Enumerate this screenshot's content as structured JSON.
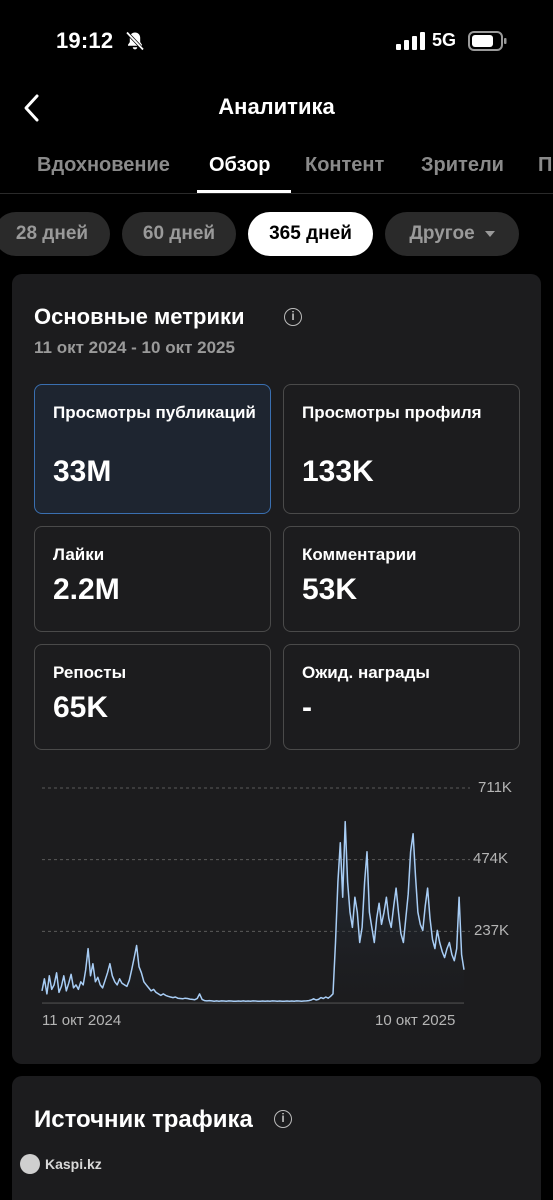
{
  "status": {
    "time": "19:12",
    "network": "5G",
    "icons": [
      "bell-slash-icon",
      "signal-icon",
      "battery-icon"
    ]
  },
  "header": {
    "title": "Аналитика",
    "back_icon": "chevron-left-icon"
  },
  "tabs": [
    {
      "label": "Вдохновение",
      "active": false
    },
    {
      "label": "Обзор",
      "active": true
    },
    {
      "label": "Контент",
      "active": false
    },
    {
      "label": "Зрители",
      "active": false
    },
    {
      "label": "П",
      "active": false
    }
  ],
  "periods": [
    {
      "label": "28 дней",
      "active": false
    },
    {
      "label": "60 дней",
      "active": false
    },
    {
      "label": "365 дней",
      "active": true
    },
    {
      "label": "Другое",
      "active": false,
      "dropdown": true
    }
  ],
  "metrics": {
    "title": "Основные метрики",
    "info_icon": "i",
    "date_range": "11 окт 2024 - 10 окт 2025",
    "tiles": [
      {
        "label": "Просмотры публикаций",
        "value": "33M",
        "selected": true
      },
      {
        "label": "Просмотры профиля",
        "value": "133K",
        "selected": false
      },
      {
        "label": "Лайки",
        "value": "2.2M",
        "selected": false
      },
      {
        "label": "Комментарии",
        "value": "53K",
        "selected": false
      },
      {
        "label": "Репосты",
        "value": "65K",
        "selected": false
      },
      {
        "label": "Ожид. награды",
        "value": "-",
        "selected": false
      }
    ]
  },
  "chart_data": {
    "type": "area",
    "title": "",
    "xlabel": "",
    "ylabel": "",
    "x_tick_labels": [
      "11 окт 2024",
      "10 окт 2025"
    ],
    "y_tick_labels": [
      "711K",
      "474K",
      "237K"
    ],
    "y_ticks": [
      711000,
      474000,
      237000
    ],
    "ylim": [
      0,
      711000
    ],
    "grid": "dashed-horizontal",
    "color": "#a8cdf5",
    "series": [
      {
        "values": [
          40000,
          80000,
          30000,
          90000,
          45000,
          60000,
          100000,
          35000,
          55000,
          90000,
          40000,
          65000,
          95000,
          50000,
          60000,
          45000,
          70000,
          60000,
          110000,
          180000,
          90000,
          130000,
          70000,
          85000,
          60000,
          50000,
          75000,
          100000,
          130000,
          90000,
          70000,
          60000,
          80000,
          65000,
          60000,
          55000,
          75000,
          110000,
          150000,
          190000,
          120000,
          100000,
          70000,
          60000,
          50000,
          40000,
          45000,
          35000,
          30000,
          25000,
          30000,
          25000,
          22000,
          20000,
          18000,
          20000,
          16000,
          15000,
          14000,
          16000,
          15000,
          13000,
          12000,
          11000,
          15000,
          30000,
          12000,
          8000,
          7000,
          8000,
          7000,
          6000,
          7000,
          6000,
          7000,
          6500,
          6000,
          7000,
          6500,
          6000,
          6000,
          6500,
          6000,
          7000,
          6000,
          6500,
          6000,
          7000,
          6500,
          6000,
          6000,
          6500,
          6000,
          6500,
          6000,
          7000,
          6500,
          6000,
          6500,
          6000,
          6000,
          6500,
          6000,
          6500,
          6000,
          7000,
          6500,
          6000,
          6500,
          7000,
          8000,
          10000,
          14000,
          10000,
          12000,
          18000,
          15000,
          20000,
          16000,
          22000,
          30000,
          200000,
          400000,
          530000,
          350000,
          600000,
          400000,
          300000,
          250000,
          350000,
          300000,
          200000,
          250000,
          400000,
          500000,
          300000,
          250000,
          200000,
          280000,
          330000,
          260000,
          300000,
          350000,
          280000,
          250000,
          320000,
          380000,
          300000,
          230000,
          200000,
          280000,
          360000,
          500000,
          560000,
          420000,
          300000,
          260000,
          240000,
          320000,
          380000,
          280000,
          210000,
          180000,
          240000,
          200000,
          170000,
          150000,
          180000,
          200000,
          160000,
          140000,
          180000,
          350000,
          160000,
          110000
        ]
      }
    ]
  },
  "traffic": {
    "title": "Источник трафика",
    "info_icon": "i"
  },
  "watermark": {
    "text": "Kaspi.kz"
  }
}
